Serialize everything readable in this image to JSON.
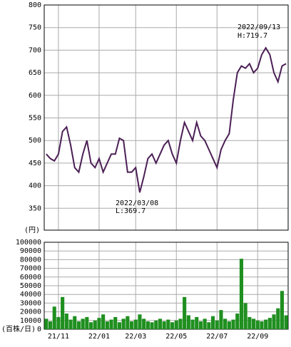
{
  "chart_data": [
    {
      "type": "line",
      "y_label": "(円)",
      "color": "#4b1f55",
      "values": [
        470,
        460,
        455,
        470,
        520,
        530,
        490,
        440,
        430,
        470,
        500,
        450,
        440,
        460,
        430,
        450,
        470,
        470,
        505,
        500,
        430,
        430,
        440,
        385,
        420,
        460,
        470,
        450,
        470,
        490,
        500,
        470,
        450,
        500,
        540,
        520,
        500,
        540,
        510,
        500,
        480,
        460,
        440,
        480,
        500,
        515,
        590,
        650,
        665,
        660,
        670,
        650,
        660,
        690,
        705,
        690,
        650,
        630,
        665,
        670
      ],
      "ylim": [
        300,
        800
      ],
      "yticks": [
        350,
        400,
        450,
        500,
        550,
        600,
        650,
        700,
        750,
        800
      ],
      "grid": true,
      "annotations": [
        "2022/09/13",
        "H:719.7",
        "2022/03/08",
        "L:369.7"
      ]
    },
    {
      "type": "bar",
      "y_label": "(百株/日)",
      "color": "#1f8f1f",
      "categories": [
        null,
        null,
        null,
        "21/11",
        null,
        null,
        null,
        null,
        null,
        null,
        null,
        null,
        null,
        "22/01",
        null,
        null,
        null,
        null,
        null,
        null,
        null,
        null,
        "22/03",
        null,
        null,
        null,
        null,
        null,
        null,
        null,
        null,
        null,
        "22/05",
        null,
        null,
        null,
        null,
        null,
        null,
        null,
        null,
        null,
        "22/07",
        null,
        null,
        null,
        null,
        null,
        null,
        null,
        null,
        null,
        "22/09",
        null,
        null,
        null,
        null,
        null,
        null,
        null
      ],
      "values": [
        12000,
        9000,
        26000,
        14000,
        37000,
        18000,
        11000,
        15000,
        9000,
        12000,
        14000,
        8000,
        10000,
        13000,
        17000,
        9000,
        11000,
        14000,
        8000,
        12000,
        15000,
        9000,
        11000,
        17000,
        12000,
        9000,
        8000,
        10000,
        12000,
        9000,
        11000,
        8000,
        10000,
        12000,
        37000,
        16000,
        11000,
        14000,
        9000,
        12000,
        8000,
        15000,
        10000,
        22000,
        12000,
        9000,
        11000,
        18000,
        81000,
        30000,
        14000,
        12000,
        10000,
        9000,
        11000,
        13000,
        17000,
        24000,
        44000,
        16000
      ],
      "ylim": [
        0,
        100000
      ],
      "yticks": [
        0,
        10000,
        20000,
        30000,
        40000,
        50000,
        60000,
        70000,
        80000,
        90000,
        100000
      ],
      "grid": true
    }
  ]
}
